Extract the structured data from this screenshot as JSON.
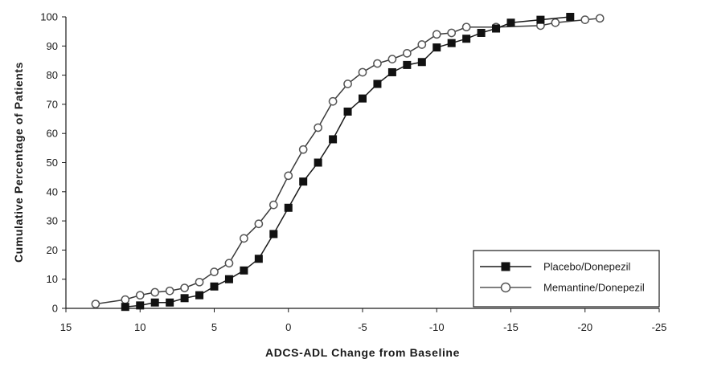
{
  "chart_data": {
    "type": "line",
    "xlabel": "ADCS-ADL Change from Baseline",
    "ylabel": "Cumulative Percentage of Patients",
    "xlim": [
      15,
      -25
    ],
    "ylim": [
      0,
      100
    ],
    "x_ticks": [
      "15",
      "10",
      "5",
      "0",
      "-5",
      "-10",
      "-15",
      "-20",
      "-25"
    ],
    "y_ticks": [
      "0",
      "10",
      "20",
      "30",
      "40",
      "50",
      "60",
      "70",
      "80",
      "90",
      "100"
    ],
    "grid": false,
    "legend_position": "bottom-right",
    "series": [
      {
        "name": "Placebo/Donepezil",
        "marker": "filled-square",
        "color": "#1a1a1a",
        "x": [
          11,
          10,
          9,
          8,
          7,
          6,
          5,
          4,
          3,
          2,
          1,
          0,
          -1,
          -2,
          -3,
          -4,
          -5,
          -6,
          -7,
          -8,
          -9,
          -10,
          -11,
          -12,
          -13,
          -14,
          -15,
          -17,
          -19
        ],
        "y": [
          0.5,
          1,
          2,
          2,
          3.5,
          4.5,
          7.5,
          10,
          13,
          17,
          25.5,
          34.5,
          43.5,
          50,
          58,
          67.5,
          72,
          77,
          81,
          83.5,
          84.5,
          89.5,
          91,
          92.5,
          94.5,
          96,
          98,
          99,
          100
        ]
      },
      {
        "name": "Memantine/Donepezil",
        "marker": "open-circle",
        "color": "#555555",
        "x": [
          13,
          11,
          10,
          9,
          8,
          7,
          6,
          5,
          4,
          3,
          2,
          1,
          0,
          -1,
          -2,
          -3,
          -4,
          -5,
          -6,
          -7,
          -8,
          -9,
          -10,
          -11,
          -12,
          -14,
          -17,
          -18,
          -20,
          -21
        ],
        "y": [
          1.5,
          3,
          4.5,
          5.5,
          6,
          7,
          9,
          12.5,
          15.5,
          24,
          29,
          35.5,
          45.5,
          54.5,
          62,
          71,
          77,
          81,
          84,
          85.5,
          87.5,
          90.5,
          94,
          94.5,
          96.5,
          96.5,
          97,
          98,
          99,
          99.5
        ]
      }
    ]
  }
}
